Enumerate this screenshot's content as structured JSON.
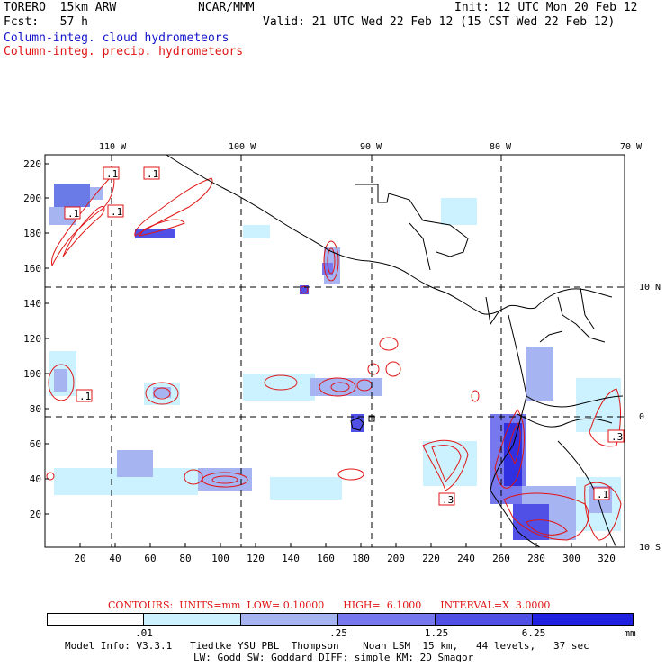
{
  "header": {
    "model": "TORERO  15km ARW",
    "center": "NCAR/MMM",
    "init": "Init: 12 UTC Mon 20 Feb 12",
    "fcst": "Fcst:   57 h",
    "valid": "Valid: 21 UTC Wed 22 Feb 12 (15 CST Wed 22 Feb 12)",
    "field1": "Column-integ. cloud hydrometeors",
    "field2": "Column-integ. precip. hydrometeors"
  },
  "map": {
    "lon_labels": [
      "110 W",
      "100 W",
      "90 W",
      "80 W",
      "70 W"
    ],
    "lat_labels": [
      "10 N",
      "0",
      "10 S"
    ],
    "y_ticks": [
      "220",
      "200",
      "180",
      "160",
      "140",
      "120",
      "100",
      "80",
      "60",
      "40",
      "20"
    ],
    "x_ticks": [
      "20",
      "40",
      "60",
      "80",
      "100",
      "120",
      "140",
      "160",
      "180",
      "200",
      "220",
      "240",
      "260",
      "280",
      "300",
      "320"
    ],
    "contour_boxes": [
      ".1",
      ".1",
      ".1",
      ".1",
      ".1",
      ".3",
      ".3",
      ".1"
    ]
  },
  "contour_info": "CONTOURS:  UNITS=mm  LOW= 0.10000      HIGH=  6.1000      INTERVAL=X  3.0000",
  "colorbar": {
    "labels": [
      ".01",
      ".25",
      "1.25",
      "6.25",
      "mm"
    ],
    "colors": [
      "#ffffff",
      "#ccf2ff",
      "#a6b4f2",
      "#7878ee",
      "#5050e6",
      "#2020e0"
    ]
  },
  "footer": {
    "line1": "Model Info: V3.3.1   Tiedtke YSU PBL  Thompson    Noah LSM  15 km,   44 levels,   37 sec",
    "line2": "LW: Godd SW: Goddard DIFF: simple KM: 2D Smagor"
  }
}
